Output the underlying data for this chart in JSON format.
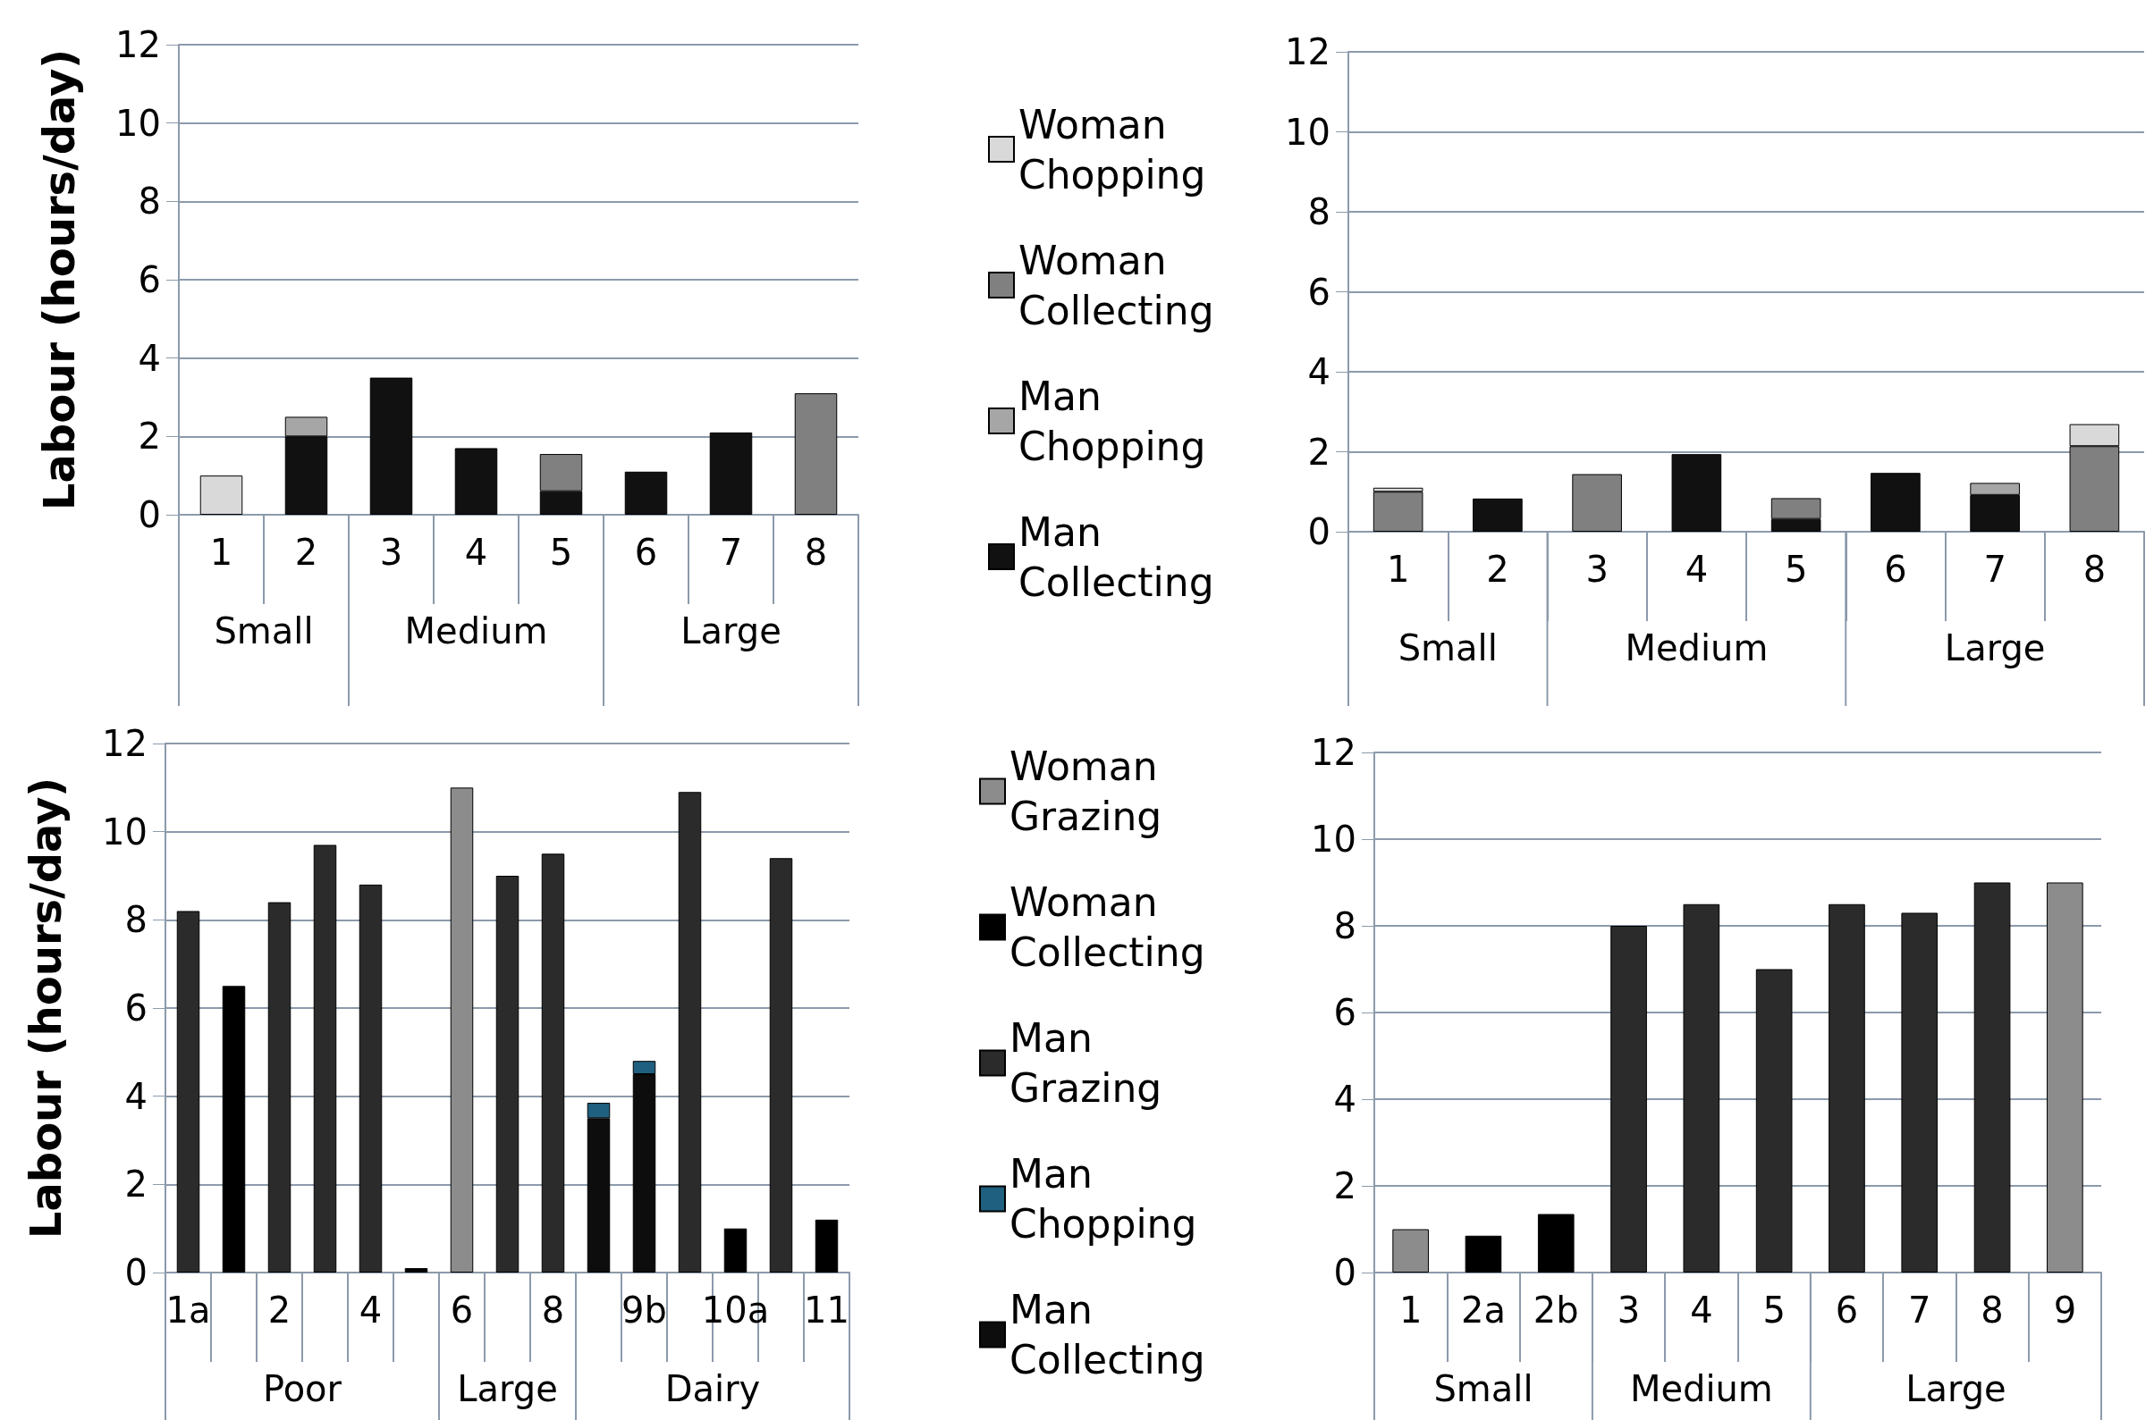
{
  "chart_data": [
    {
      "type": "bar",
      "stacked": true,
      "ylabel": "Labour (hours/day)",
      "categories": [
        "1",
        "2",
        "3",
        "4",
        "5",
        "6",
        "7",
        "8"
      ],
      "ylim": [
        0,
        12
      ],
      "yticks": [
        0,
        2,
        4,
        6,
        8,
        10,
        12
      ],
      "grid": "y",
      "legend": "right",
      "annotations": [
        "Small",
        "Medium",
        "Large"
      ],
      "series": [
        {
          "name": "Man Collecting",
          "color": "#111111",
          "values": [
            null,
            2.0,
            3.5,
            1.7,
            0.6,
            1.1,
            2.1,
            null
          ]
        },
        {
          "name": "Man Chopping",
          "color": "#a6a6a6",
          "values": [
            null,
            0.5,
            null,
            null,
            null,
            null,
            null,
            null
          ]
        },
        {
          "name": "Woman Collecting",
          "color": "#808080",
          "values": [
            null,
            null,
            null,
            null,
            0.95,
            null,
            null,
            3.1
          ]
        },
        {
          "name": "Woman Chopping",
          "color": "#d9d9d9",
          "values": [
            1.0,
            null,
            null,
            null,
            null,
            null,
            null,
            null
          ]
        }
      ]
    },
    {
      "type": "bar",
      "stacked": true,
      "categories": [
        "1",
        "2",
        "3",
        "4",
        "5",
        "6",
        "7",
        "8"
      ],
      "ylim": [
        0,
        12
      ],
      "yticks": [
        0,
        2,
        4,
        6,
        8,
        10,
        12
      ],
      "grid": "y",
      "annotations": [
        "Small",
        "Medium",
        "Large"
      ],
      "series": [
        {
          "color": "#111111",
          "values": [
            null,
            0.83,
            null,
            1.94,
            0.32,
            1.47,
            0.92,
            null
          ]
        },
        {
          "color": "#a6a6a6",
          "values": [
            null,
            null,
            null,
            null,
            null,
            null,
            0.3,
            null
          ]
        },
        {
          "color": "#808080",
          "values": [
            1.0,
            null,
            1.44,
            null,
            0.52,
            null,
            null,
            2.14
          ]
        },
        {
          "color": "#d9d9d9",
          "values": [
            0.1,
            null,
            null,
            null,
            null,
            null,
            null,
            0.55
          ]
        }
      ]
    },
    {
      "type": "bar",
      "stacked": true,
      "ylabel": "Labour (hours/day)",
      "categories": [
        "1a",
        null,
        "2",
        null,
        "4",
        null,
        "6",
        null,
        "8",
        null,
        "9b",
        null,
        "10a",
        null,
        "11"
      ],
      "ylim": [
        0,
        12
      ],
      "yticks": [
        0,
        2,
        4,
        6,
        8,
        10,
        12
      ],
      "grid": "y",
      "legend": "right",
      "annotations": [
        "Poor",
        "Large",
        "Dairy"
      ],
      "series": [
        {
          "name": "Man Collecting",
          "color": "#0d0d0d",
          "values": [
            null,
            null,
            null,
            null,
            null,
            null,
            null,
            null,
            null,
            3.5,
            4.5,
            null,
            null,
            null,
            null
          ]
        },
        {
          "name": "Man Chopping",
          "color": "#1f5f7f",
          "values": [
            null,
            null,
            null,
            null,
            null,
            null,
            null,
            null,
            null,
            0.35,
            0.3,
            null,
            null,
            null,
            null
          ]
        },
        {
          "name": "Man Grazing",
          "color": "#2b2b2b",
          "values": [
            8.2,
            null,
            8.4,
            9.7,
            8.8,
            null,
            null,
            9.0,
            9.5,
            null,
            null,
            10.9,
            null,
            9.4,
            null
          ]
        },
        {
          "name": "Woman Collecting",
          "color": "#000000",
          "values": [
            null,
            6.5,
            null,
            null,
            null,
            0.1,
            null,
            null,
            null,
            null,
            null,
            null,
            1.0,
            null,
            1.2
          ]
        },
        {
          "name": "Woman Grazing",
          "color": "#8c8c8c",
          "values": [
            null,
            null,
            null,
            null,
            null,
            null,
            11.0,
            null,
            null,
            null,
            null,
            null,
            null,
            null,
            null
          ]
        }
      ]
    },
    {
      "type": "bar",
      "stacked": true,
      "categories": [
        "1",
        "2a",
        "2b",
        "3",
        "4",
        "5",
        "6",
        "7",
        "8",
        "9"
      ],
      "ylim": [
        0,
        12
      ],
      "yticks": [
        0,
        2,
        4,
        6,
        8,
        10,
        12
      ],
      "grid": "y",
      "annotations": [
        "Small",
        "Medium",
        "Large"
      ],
      "series": [
        {
          "color": "#0d0d0d",
          "values": [
            null,
            null,
            null,
            null,
            null,
            null,
            null,
            null,
            null,
            null
          ]
        },
        {
          "color": "#1f5f7f",
          "values": [
            null,
            null,
            null,
            null,
            null,
            null,
            null,
            null,
            null,
            null
          ]
        },
        {
          "color": "#2b2b2b",
          "values": [
            null,
            null,
            null,
            8.0,
            8.5,
            7.0,
            8.5,
            8.3,
            9.0,
            null
          ]
        },
        {
          "color": "#000000",
          "values": [
            null,
            0.85,
            1.35,
            null,
            null,
            null,
            null,
            null,
            null,
            null
          ]
        },
        {
          "color": "#8c8c8c",
          "values": [
            1.0,
            null,
            null,
            null,
            null,
            null,
            null,
            null,
            null,
            9.0
          ]
        }
      ]
    }
  ]
}
